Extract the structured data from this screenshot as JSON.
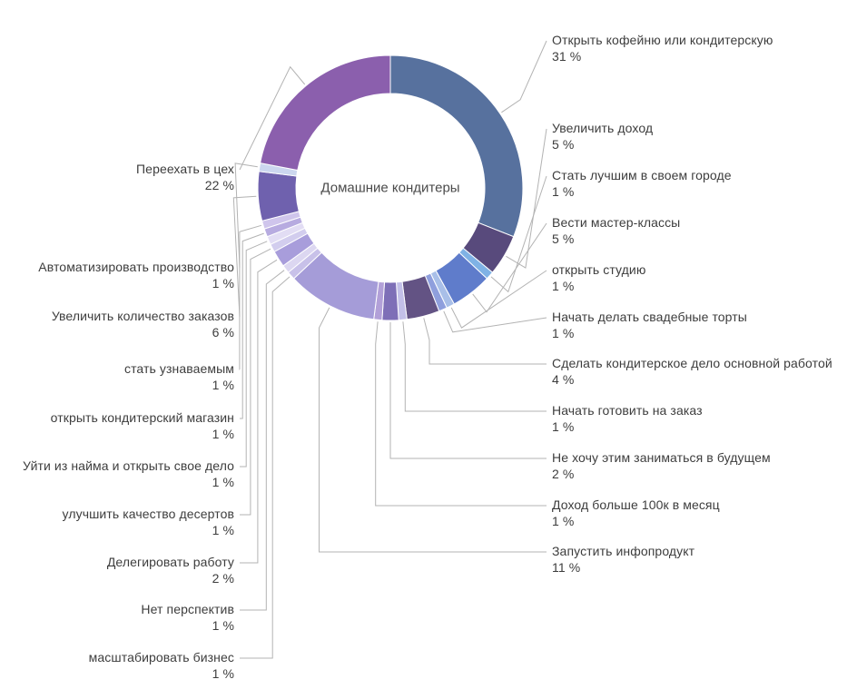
{
  "chart_data": {
    "type": "pie",
    "variant": "donut",
    "center_label": "Домашние кондитеры",
    "units": "%",
    "order": "clockwise-from-top",
    "legend_position": "none",
    "segments": [
      {
        "label": "Открыть кофейню или кондитерскую",
        "value": 31,
        "pct": "31 %",
        "color": "#57719e",
        "side": "right"
      },
      {
        "label": "Увеличить доход",
        "value": 5,
        "pct": "5 %",
        "color": "#584a7c",
        "side": "right"
      },
      {
        "label": "Стать лучшим в своем городе",
        "value": 1,
        "pct": "1 %",
        "color": "#7fb2e5",
        "side": "right"
      },
      {
        "label": "Вести мастер-классы",
        "value": 5,
        "pct": "5 %",
        "color": "#5f7ccb",
        "side": "right"
      },
      {
        "label": "открыть студию",
        "value": 1,
        "pct": "1 %",
        "color": "#a9bfe8",
        "side": "right"
      },
      {
        "label": "Начать делать свадебные торты",
        "value": 1,
        "pct": "1 %",
        "color": "#8f9fdd",
        "side": "right"
      },
      {
        "label": "Сделать кондитерское дело основной работой",
        "value": 4,
        "pct": "4 %",
        "color": "#635384",
        "side": "right"
      },
      {
        "label": "Начать готовить на заказ",
        "value": 1,
        "pct": "1 %",
        "color": "#c3c0e8",
        "side": "right"
      },
      {
        "label": "Не хочу этим заниматься в будущем",
        "value": 2,
        "pct": "2 %",
        "color": "#7e6fb7",
        "side": "right"
      },
      {
        "label": "Доход больше 100к в месяц",
        "value": 1,
        "pct": "1 %",
        "color": "#b2a0d8",
        "side": "right"
      },
      {
        "label": "Запустить инфопродукт",
        "value": 11,
        "pct": "11 %",
        "color": "#a59cd8",
        "side": "right"
      },
      {
        "label": "масштабировать бизнес",
        "value": 1,
        "pct": "1 %",
        "color": "#c8c1e9",
        "side": "left"
      },
      {
        "label": "Нет перспектив",
        "value": 1,
        "pct": "1 %",
        "color": "#dcd7f1",
        "side": "left"
      },
      {
        "label": "Делегировать работу",
        "value": 2,
        "pct": "2 %",
        "color": "#a89ddb",
        "side": "left"
      },
      {
        "label": "улучшить качество десертов",
        "value": 1,
        "pct": "1 %",
        "color": "#d2cdee",
        "side": "left"
      },
      {
        "label": "Уйти из найма и открыть свое дело",
        "value": 1,
        "pct": "1 %",
        "color": "#e2ddf4",
        "side": "left"
      },
      {
        "label": "открыть кондитерский магазин",
        "value": 1,
        "pct": "1 %",
        "color": "#b7abe0",
        "side": "left"
      },
      {
        "label": "стать узнаваемым",
        "value": 1,
        "pct": "1 %",
        "color": "#cfc5ec",
        "side": "left"
      },
      {
        "label": "Увеличить количество заказов",
        "value": 6,
        "pct": "6 %",
        "color": "#6f61ae",
        "side": "left"
      },
      {
        "label": "Автоматизировать производство",
        "value": 1,
        "pct": "1 %",
        "color": "#ccd7ef",
        "side": "left"
      },
      {
        "label": "Переехать в цех",
        "value": 22,
        "pct": "22 %",
        "color": "#8b5fad",
        "side": "left"
      }
    ]
  },
  "colors": {
    "leader_line": "#b3b3b3",
    "text": "#3d3d3d",
    "background": "#ffffff"
  }
}
